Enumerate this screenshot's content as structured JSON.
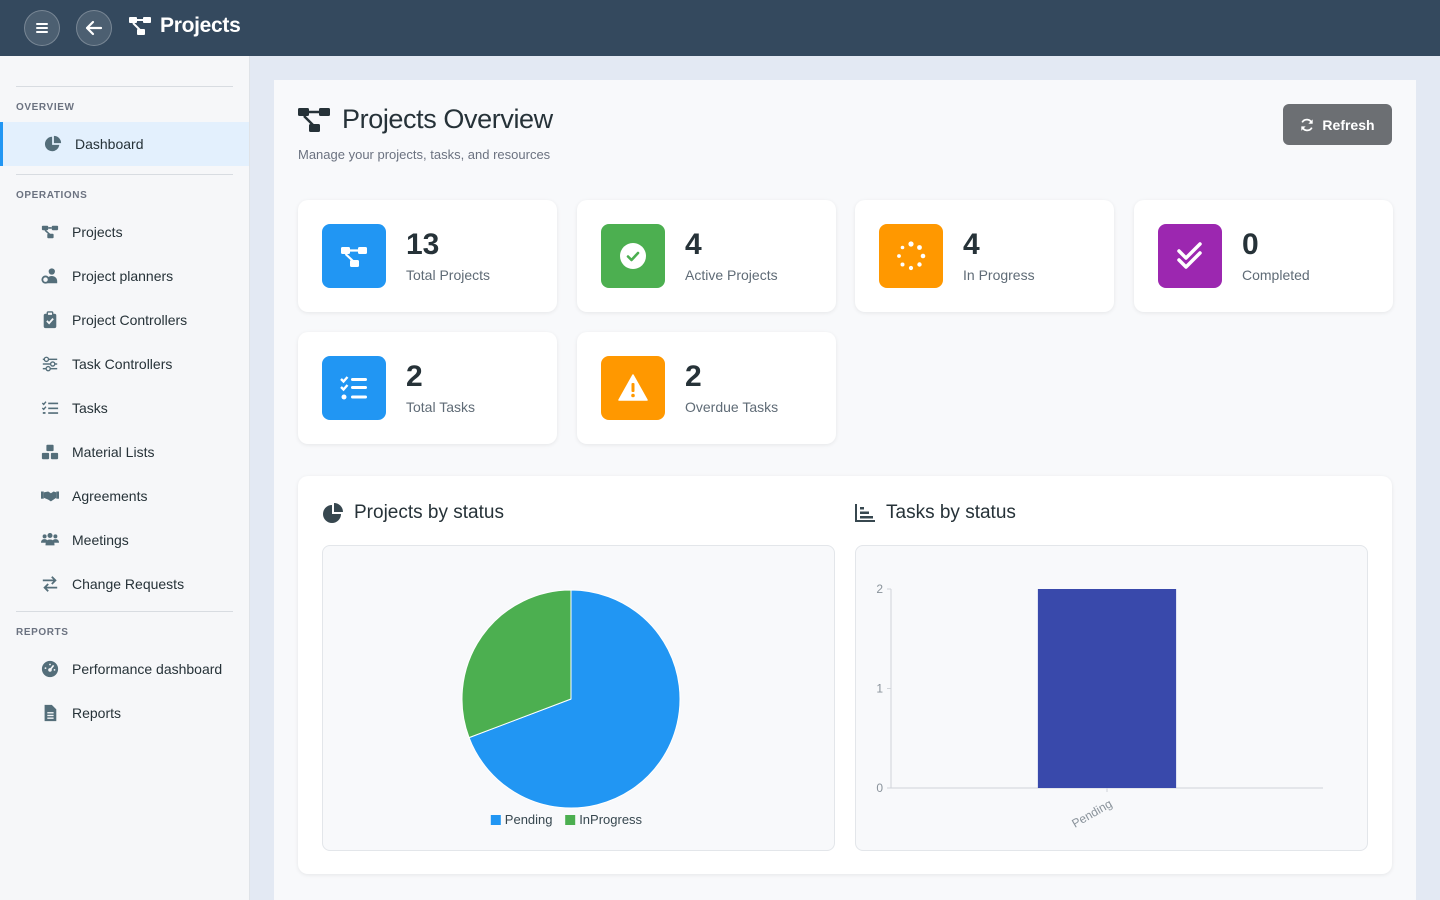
{
  "topbar": {
    "title": "Projects",
    "menu_icon": "hamburger-icon",
    "back_icon": "arrow-left-icon",
    "title_icon": "project-diagram-icon"
  },
  "sidebar": {
    "sections": [
      {
        "label": "OVERVIEW",
        "items": [
          {
            "label": "Dashboard",
            "icon": "chart-pie-icon",
            "active": true
          }
        ]
      },
      {
        "label": "OPERATIONS",
        "items": [
          {
            "label": "Projects",
            "icon": "project-diagram-icon"
          },
          {
            "label": "Project planners",
            "icon": "user-gear-icon"
          },
          {
            "label": "Project Controllers",
            "icon": "clipboard-check-icon"
          },
          {
            "label": "Task Controllers",
            "icon": "sliders-icon"
          },
          {
            "label": "Tasks",
            "icon": "list-check-icon"
          },
          {
            "label": "Material Lists",
            "icon": "boxes-icon"
          },
          {
            "label": "Agreements",
            "icon": "handshake-icon"
          },
          {
            "label": "Meetings",
            "icon": "users-icon"
          },
          {
            "label": "Change Requests",
            "icon": "exchange-icon"
          }
        ]
      },
      {
        "label": "REPORTS",
        "items": [
          {
            "label": "Performance dashboard",
            "icon": "gauge-icon"
          },
          {
            "label": "Reports",
            "icon": "file-icon"
          }
        ]
      }
    ]
  },
  "page": {
    "title": "Projects Overview",
    "subtitle": "Manage your projects, tasks, and resources",
    "refresh_label": "Refresh"
  },
  "stats": [
    {
      "value": "13",
      "label": "Total Projects",
      "color": "#2196f3",
      "icon": "project-diagram-icon"
    },
    {
      "value": "4",
      "label": "Active Projects",
      "color": "#4caf50",
      "icon": "check-circle-icon"
    },
    {
      "value": "4",
      "label": "In Progress",
      "color": "#ff9800",
      "icon": "spinner-icon"
    },
    {
      "value": "0",
      "label": "Completed",
      "color": "#9c27b0",
      "icon": "double-check-icon"
    },
    {
      "value": "2",
      "label": "Total Tasks",
      "color": "#2196f3",
      "icon": "list-check-icon"
    },
    {
      "value": "2",
      "label": "Overdue Tasks",
      "color": "#ff9800",
      "icon": "warning-icon"
    }
  ],
  "charts": {
    "projects_title": "Projects by status",
    "tasks_title": "Tasks by status"
  },
  "chart_data": [
    {
      "type": "pie",
      "title": "Projects by status",
      "categories": [
        "Pending",
        "InProgress"
      ],
      "values": [
        9,
        4
      ],
      "colors": [
        "#2196f3",
        "#4caf50"
      ],
      "legend": "bottom"
    },
    {
      "type": "bar",
      "title": "Tasks by status",
      "categories": [
        "Pending"
      ],
      "values": [
        2
      ],
      "ylim": [
        0,
        2
      ],
      "yticks": [
        0,
        1,
        2
      ],
      "color": "#3949ab"
    }
  ]
}
